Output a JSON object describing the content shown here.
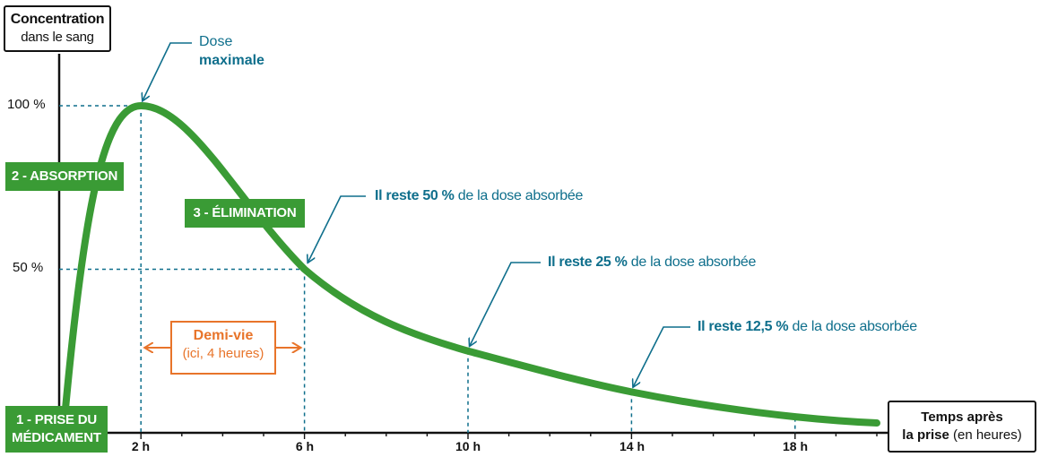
{
  "axis_labels": {
    "y_line1": "Concentration",
    "y_line2": "dans le sang",
    "x_line1": "Temps après",
    "x_line2_bold": "la prise",
    "x_line2_rest": " (en heures)"
  },
  "badges": {
    "absorption": "2 - ABSORPTION",
    "elimination": "3 - ÉLIMINATION",
    "prise_line1": "1 - PRISE DU",
    "prise_line2": "MÉDICAMENT"
  },
  "annotations": {
    "dose_line1": "Dose",
    "dose_line2": "maximale",
    "reste50_bold": "Il reste 50 %",
    "reste50_rest": " de la dose absorbée",
    "reste25_bold": "Il reste 25 %",
    "reste25_rest": " de la dose absorbée",
    "reste12_bold": "Il reste 12,5 %",
    "reste12_rest": " de la dose absorbée",
    "demivie_line1": "Demi-vie",
    "demivie_line2": "(ici, 4 heures)"
  },
  "colors": {
    "curve": "#3a9b35",
    "blue": "#0f6f8c",
    "orange": "#e8742a",
    "axis": "#111111"
  },
  "chart_data": {
    "type": "line",
    "x": [
      0,
      2,
      6,
      10,
      14,
      20
    ],
    "y": [
      0,
      100,
      50,
      25,
      12.5,
      3
    ],
    "xlim": [
      0,
      20
    ],
    "ylim": [
      0,
      100
    ],
    "x_ticks": [
      2,
      6,
      10,
      14,
      18
    ],
    "x_tick_labels": [
      "2 h",
      "6 h",
      "10 h",
      "14 h",
      "18 h"
    ],
    "y_ticks": [
      50,
      100
    ],
    "y_tick_labels": [
      "50 %",
      "100 %"
    ],
    "grid": false
  }
}
